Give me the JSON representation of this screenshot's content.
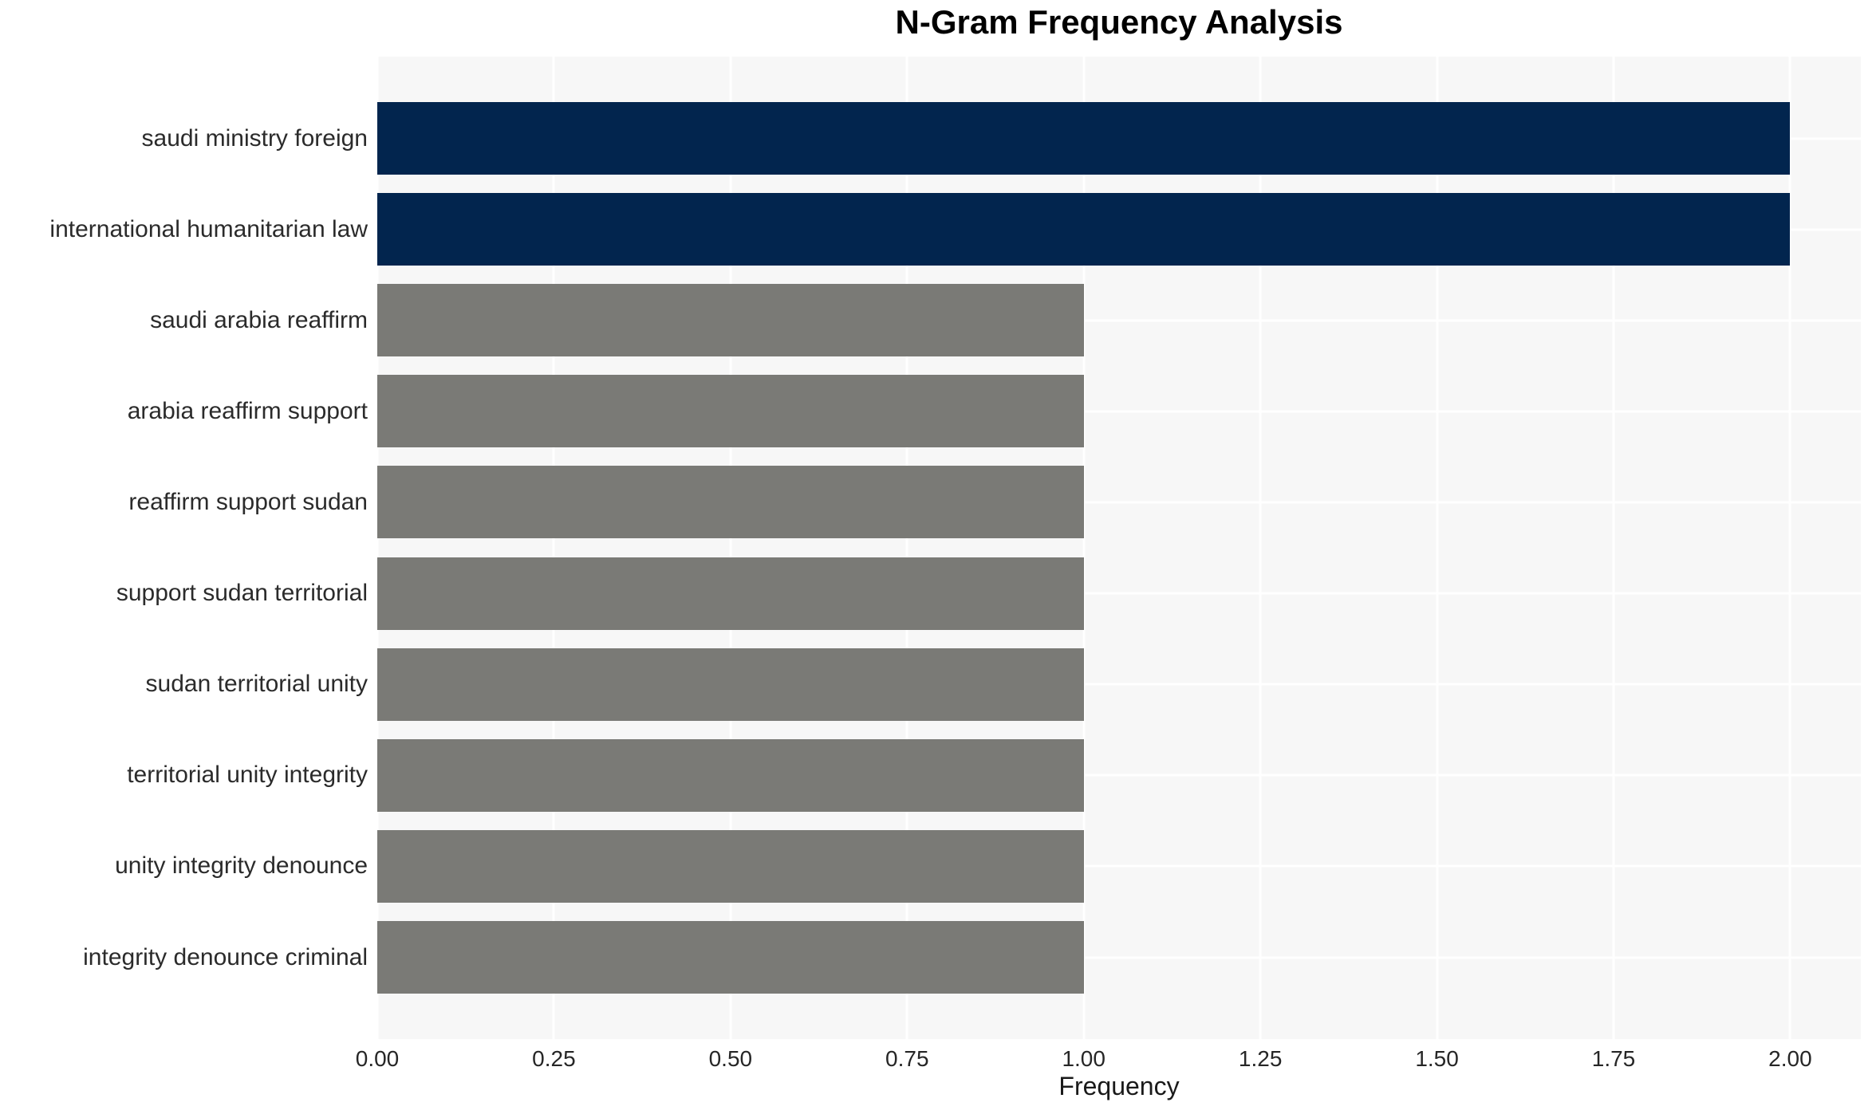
{
  "chart_data": {
    "type": "bar",
    "orientation": "horizontal",
    "title": "N-Gram Frequency Analysis",
    "xlabel": "Frequency",
    "ylabel": "",
    "categories": [
      "saudi ministry foreign",
      "international humanitarian law",
      "saudi arabia reaffirm",
      "arabia reaffirm support",
      "reaffirm support sudan",
      "support sudan territorial",
      "sudan territorial unity",
      "territorial unity integrity",
      "unity integrity denounce",
      "integrity denounce criminal"
    ],
    "values": [
      2,
      2,
      1,
      1,
      1,
      1,
      1,
      1,
      1,
      1
    ],
    "bar_colors": [
      "#02254e",
      "#02254e",
      "#7a7a76",
      "#7a7a76",
      "#7a7a76",
      "#7a7a76",
      "#7a7a76",
      "#7a7a76",
      "#7a7a76",
      "#7a7a76"
    ],
    "xtick_labels": [
      "0.00",
      "0.25",
      "0.50",
      "0.75",
      "1.00",
      "1.25",
      "1.50",
      "1.75",
      "2.00"
    ],
    "xtick_values": [
      0,
      0.25,
      0.5,
      0.75,
      1.0,
      1.25,
      1.5,
      1.75,
      2.0
    ],
    "xlim": [
      0,
      2.1
    ],
    "grid": true,
    "legend": false,
    "colors": {
      "highlight_bar": "#02254e",
      "default_bar": "#7a7a76",
      "plot_background": "#f7f7f7",
      "grid_line": "#ffffff",
      "title_text": "#000000",
      "tick_text": "#262626",
      "category_text": "#2b2b2b"
    }
  }
}
